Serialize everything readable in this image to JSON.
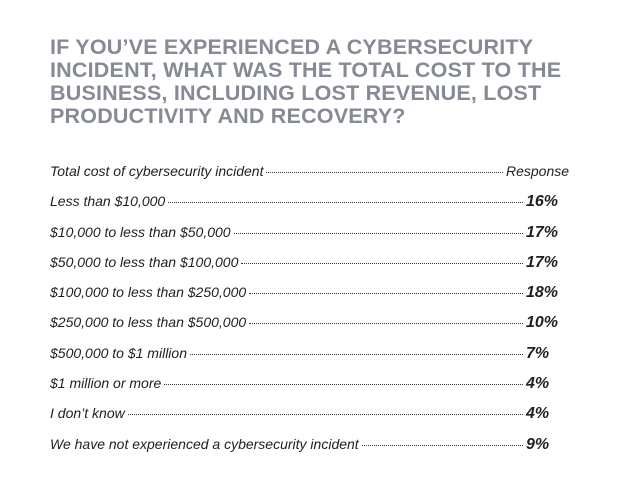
{
  "title": "IF YOU’VE EXPERIENCED A CYBERSECURITY INCIDENT, WHAT WAS THE TOTAL COST TO THE BUSINESS, INCLUDING LOST REVENUE, LOST PRODUCTIVITY AND RECOVERY?",
  "table": {
    "header": {
      "label": "Total cost of cybersecurity incident",
      "value": "Response"
    },
    "rows": [
      {
        "label": "Less than $10,000",
        "value": "16%"
      },
      {
        "label": "$10,000 to less than $50,000",
        "value": "17%"
      },
      {
        "label": "$50,000 to less than $100,000",
        "value": "17%"
      },
      {
        "label": "$100,000 to less than $250,000",
        "value": "18%"
      },
      {
        "label": "$250,000 to less than $500,000",
        "value": "10%"
      },
      {
        "label": "$500,000 to $1 million",
        "value": "7%"
      },
      {
        "label": "$1 million or more",
        "value": "4%"
      },
      {
        "label": "I don’t know",
        "value": "4%"
      },
      {
        "label": "We have not experienced a cybersecurity incident",
        "value": "9%"
      }
    ]
  }
}
